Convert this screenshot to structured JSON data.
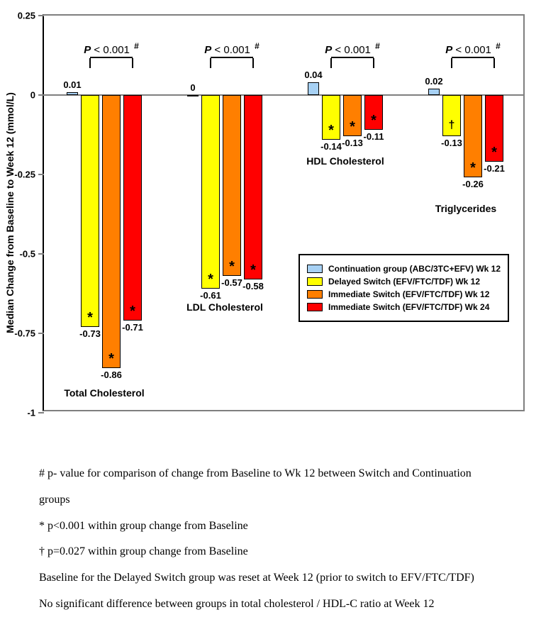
{
  "chart": {
    "type": "bar",
    "y_axis_title": "Median Change from Baseline to Week 12 (mmol/L)",
    "ylim": [
      -1,
      0.25
    ],
    "yticks": [
      -1,
      -0.75,
      -0.5,
      -0.25,
      0,
      0.25
    ],
    "ytick_labels": [
      "-1",
      "-0.75",
      "-0.5",
      "-0.25",
      "0",
      "0.25"
    ],
    "series_colors": {
      "continuation": "#a7d1f4",
      "delayed": "#ffff00",
      "immediate12": "#ff7f00",
      "immediate24": "#ff0000"
    },
    "bar_border": "#000000",
    "plot_border": "#7f7f7f",
    "background": "#ffffff",
    "pvalue_text": "P < 0.001",
    "pvalue_suffix": "#",
    "groups": [
      {
        "name": "Total Cholesterol",
        "bars": [
          {
            "series": "continuation",
            "value": 0.01,
            "label": "0.01",
            "marker": null
          },
          {
            "series": "delayed",
            "value": -0.73,
            "label": "-0.73",
            "marker": "*"
          },
          {
            "series": "immediate12",
            "value": -0.86,
            "label": "-0.86",
            "marker": "*"
          },
          {
            "series": "immediate24",
            "value": -0.71,
            "label": "-0.71",
            "marker": "*"
          }
        ]
      },
      {
        "name": "LDL Cholesterol",
        "bars": [
          {
            "series": "continuation",
            "value": 0,
            "label": "0",
            "marker": null
          },
          {
            "series": "delayed",
            "value": -0.61,
            "label": "-0.61",
            "marker": "*"
          },
          {
            "series": "immediate12",
            "value": -0.57,
            "label": "-0.57",
            "marker": "*"
          },
          {
            "series": "immediate24",
            "value": -0.58,
            "label": "-0.58",
            "marker": "*"
          }
        ]
      },
      {
        "name": "HDL Cholesterol",
        "bars": [
          {
            "series": "continuation",
            "value": 0.04,
            "label": "0.04",
            "marker": null
          },
          {
            "series": "delayed",
            "value": -0.14,
            "label": "-0.14",
            "marker": "*"
          },
          {
            "series": "immediate12",
            "value": -0.13,
            "label": "-0.13",
            "marker": "*"
          },
          {
            "series": "immediate24",
            "value": -0.11,
            "label": "-0.11",
            "marker": "*"
          }
        ]
      },
      {
        "name": "Triglycerides",
        "bars": [
          {
            "series": "continuation",
            "value": 0.02,
            "label": "0.02",
            "marker": null
          },
          {
            "series": "delayed",
            "value": -0.13,
            "label": "-0.13",
            "marker": "†"
          },
          {
            "series": "immediate12",
            "value": -0.26,
            "label": "-0.26",
            "marker": "*"
          },
          {
            "series": "immediate24",
            "value": -0.21,
            "label": "-0.21",
            "marker": "*"
          }
        ]
      }
    ],
    "legend": [
      {
        "series": "continuation",
        "label": "Continuation group (ABC/3TC+EFV) Wk 12"
      },
      {
        "series": "delayed",
        "label": "Delayed Switch (EFV/FTC/TDF) Wk 12"
      },
      {
        "series": "immediate12",
        "label": "Immediate Switch (EFV/FTC/TDF) Wk 12"
      },
      {
        "series": "immediate24",
        "label": "Immediate Switch (EFV/FTC/TDF) Wk 24"
      }
    ]
  },
  "footnotes": [
    "#  p- value for comparison of change from Baseline to Wk 12 between Switch and Continuation groups",
    "* p<0.001 within group change from Baseline",
    "† p=0.027 within group change from Baseline",
    "Baseline for the Delayed Switch group was reset at Week 12 (prior to switch to EFV/FTC/TDF)",
    "No significant difference between groups in total cholesterol / HDL-C ratio at Week 12"
  ]
}
